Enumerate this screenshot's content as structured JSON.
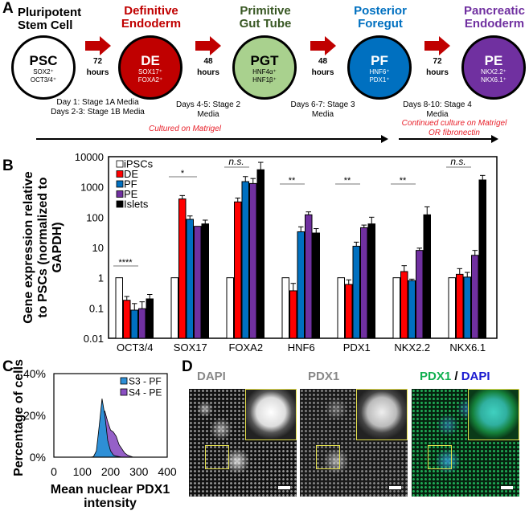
{
  "panels": {
    "a": "A",
    "b": "B",
    "c": "C",
    "d": "D"
  },
  "stages": [
    {
      "title_l1": "Pluripotent",
      "title_l2": "Stem Cell",
      "abbr": "PSC",
      "m1": "SOX2⁺",
      "m2": "OCT3/4⁺",
      "color": "#ffffff",
      "title_color": "#000000",
      "text_color": "#000000"
    },
    {
      "title_l1": "Definitive",
      "title_l2": "Endoderm",
      "abbr": "DE",
      "m1": "SOX17⁺",
      "m2": "FOXA2⁺",
      "color": "#c00000",
      "title_color": "#c00000",
      "text_color": "#ffffff"
    },
    {
      "title_l1": "Primitive",
      "title_l2": "Gut Tube",
      "abbr": "PGT",
      "m1": "HNF4α⁺",
      "m2": "HNF1β⁺",
      "color": "#a9d18e",
      "title_color": "#385723",
      "text_color": "#000000"
    },
    {
      "title_l1": "Posterior",
      "title_l2": "Foregut",
      "abbr": "PF",
      "m1": "HNF6⁺",
      "m2": "PDX1⁺",
      "color": "#0070c0",
      "title_color": "#0070c0",
      "text_color": "#ffffff"
    },
    {
      "title_l1": "Pancreatic",
      "title_l2": "Endoderm",
      "abbr": "PE",
      "m1": "NKX2.2⁺",
      "m2": "NKX6.1⁺",
      "color": "#7030a0",
      "title_color": "#7030a0",
      "text_color": "#ffffff"
    }
  ],
  "transitions": [
    {
      "n": "72",
      "unit": "hours",
      "media_l1": "Day 1: Stage 1A Media",
      "media_l2": "Days 2-3: Stage 1B Media"
    },
    {
      "n": "48",
      "unit": "hours",
      "media_l1": "Days 4-5: Stage 2",
      "media_l2": "Media"
    },
    {
      "n": "48",
      "unit": "hours",
      "media_l1": "Days 6-7: Stage 3",
      "media_l2": "Media"
    },
    {
      "n": "72",
      "unit": "hours",
      "media_l1": "Days 8-10: Stage 4",
      "media_l2": "Media"
    }
  ],
  "culture": {
    "matrigel": "Cultured on Matrigel",
    "continued_l1": "Continued culture on Matrigel",
    "continued_l2": "OR fibronectin"
  },
  "colors": {
    "arrow": "#c00000",
    "ipsc": "#ffffff",
    "de": "#ff0000",
    "pf": "#0070c0",
    "pe": "#7030a0",
    "islets": "#000000"
  },
  "chart_data": [
    {
      "type": "bar",
      "ylabel_l1": "Gene expression relative",
      "ylabel_l2": "to PSCs (normalized to",
      "ylabel_l3": "GAPDH)",
      "yscale": "log",
      "ylim": [
        0.01,
        10000
      ],
      "yticks": [
        "10000",
        "1000",
        "100",
        "10",
        "1",
        "0.1",
        "0.01"
      ],
      "ytick_values": [
        10000,
        1000,
        100,
        10,
        1,
        0.1,
        0.01
      ],
      "legend_position": "top-left",
      "categories": [
        "OCT3/4",
        "SOX17",
        "FOXA2",
        "HNF6",
        "PDX1",
        "NKX2.2",
        "NKX6.1"
      ],
      "significance": [
        "****",
        "*",
        "n.s.",
        "**",
        "**",
        "**",
        "n.s."
      ],
      "series": [
        {
          "name": "iPSCs",
          "color": "#ffffff",
          "values": [
            1,
            1,
            1,
            1,
            1,
            1,
            1
          ],
          "err_top": [
            null,
            null,
            null,
            null,
            null,
            null,
            null
          ]
        },
        {
          "name": "DE",
          "color": "#ff0000",
          "values": [
            0.18,
            400,
            320,
            0.37,
            0.6,
            1.6,
            1.3
          ],
          "err_top": [
            0.24,
            520,
            430,
            0.65,
            0.85,
            2.5,
            2.0
          ]
        },
        {
          "name": "PF",
          "color": "#0070c0",
          "values": [
            0.085,
            85,
            1500,
            33,
            11,
            0.8,
            1.05
          ],
          "err_top": [
            0.14,
            110,
            2200,
            48,
            15,
            0.9,
            1.5
          ]
        },
        {
          "name": "PE",
          "color": "#7030a0",
          "values": [
            0.095,
            50,
            1300,
            120,
            45,
            8,
            5.5
          ],
          "err_top": [
            0.16,
            null,
            1900,
            150,
            55,
            9.5,
            8
          ]
        },
        {
          "name": "Islets",
          "color": "#000000",
          "values": [
            0.2,
            60,
            3700,
            30,
            60,
            120,
            1700
          ],
          "err_top": [
            0.28,
            80,
            6500,
            42,
            100,
            220,
            2400
          ]
        }
      ]
    },
    {
      "type": "area",
      "ylabel": "Percentage of cells",
      "xlabel_l1": "Mean nuclear PDX1",
      "xlabel_l2": "intensity",
      "xlim": [
        0,
        400
      ],
      "ylim": [
        0,
        40
      ],
      "xticks": [
        "0",
        "100",
        "200",
        "300",
        "400"
      ],
      "xtick_values": [
        0,
        100,
        200,
        300,
        400
      ],
      "yticks": [
        "40%",
        "20%",
        "0%"
      ],
      "ytick_values": [
        40,
        20,
        0
      ],
      "legend_position": "top-right",
      "series": [
        {
          "name": "S3 - PF",
          "color": "#2e8fd6",
          "x": [
            100,
            130,
            140,
            150,
            160,
            170,
            180,
            190,
            200,
            210,
            220,
            240,
            300
          ],
          "y": [
            0,
            0,
            0.3,
            3,
            15,
            28,
            20,
            8,
            3,
            1,
            0.5,
            0,
            0
          ]
        },
        {
          "name": "S4 - PE",
          "color": "#8a4fc2",
          "x": [
            100,
            140,
            150,
            160,
            170,
            180,
            190,
            200,
            210,
            220,
            230,
            240,
            250,
            260,
            270,
            280,
            300
          ],
          "y": [
            0,
            0,
            2,
            10,
            20,
            22,
            17,
            13,
            12,
            10,
            6,
            4,
            2,
            1,
            0.5,
            0,
            0
          ]
        }
      ]
    }
  ],
  "microscopy": [
    {
      "label": "DAPI",
      "kind": "gray"
    },
    {
      "label": "PDX1",
      "kind": "gray2"
    },
    {
      "label_green": "PDX1",
      "label_sep": " / ",
      "label_blue": "DAPI",
      "kind": "merge"
    }
  ]
}
